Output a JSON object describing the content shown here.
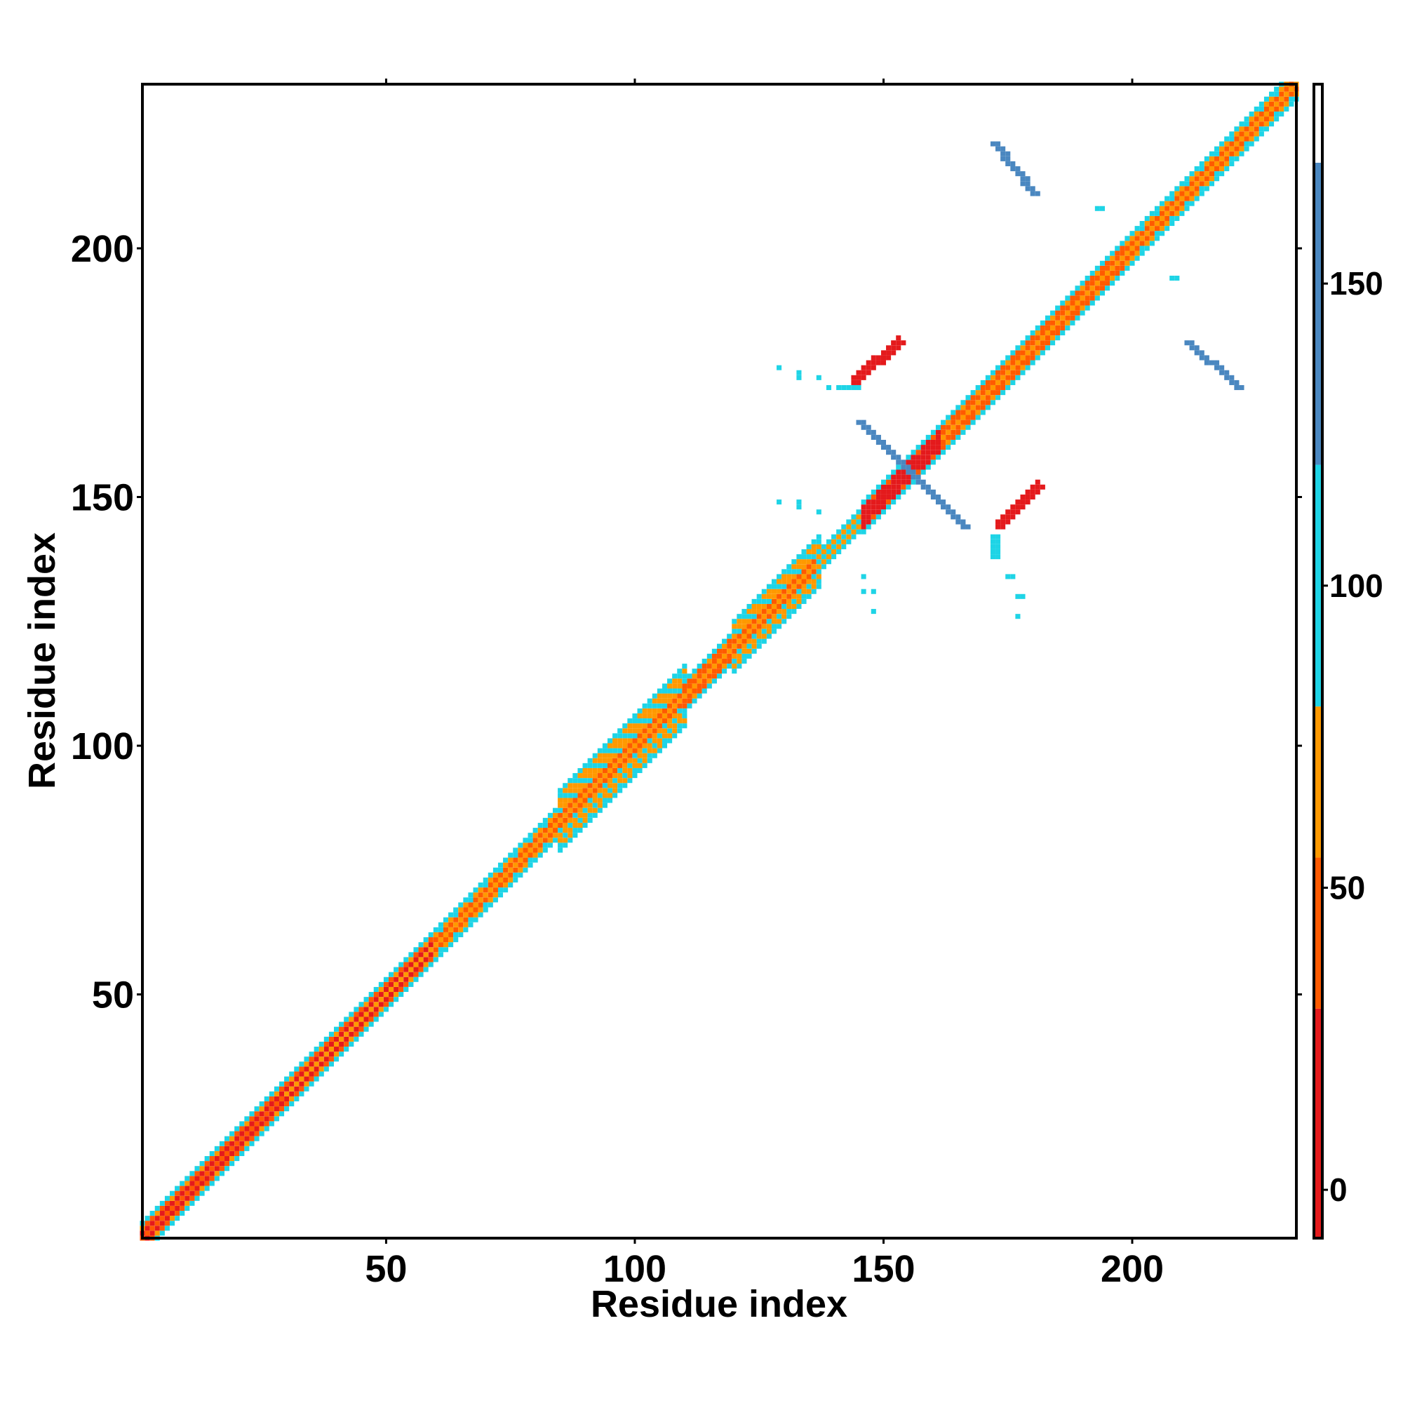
{
  "chart_data": {
    "type": "heatmap",
    "title": "",
    "xlabel": "Residue index",
    "ylabel": "Residue index",
    "xlim": [
      1,
      233
    ],
    "ylim": [
      1,
      233
    ],
    "x_ticks": [
      50,
      100,
      150,
      200
    ],
    "y_ticks": [
      50,
      100,
      150,
      200
    ],
    "colorbar": {
      "range": [
        -8,
        183
      ],
      "ticks": [
        0,
        50,
        100,
        150
      ],
      "bands": [
        {
          "from": -8,
          "to": 30,
          "color": "#e41a1c"
        },
        {
          "from": 30,
          "to": 55,
          "color": "#ff5a00"
        },
        {
          "from": 55,
          "to": 80,
          "color": "#ff9900"
        },
        {
          "from": 80,
          "to": 120,
          "color": "#1ed4e6"
        },
        {
          "from": 120,
          "to": 170,
          "color": "#4a87c0"
        },
        {
          "from": 170,
          "to": 183,
          "color": "#ffffff"
        }
      ]
    },
    "diagonal_segments": [
      {
        "from": 1,
        "to": 30,
        "halfwidth": 3,
        "value": 40
      },
      {
        "from": 30,
        "to": 60,
        "halfwidth": 3,
        "value": 55
      },
      {
        "from": 60,
        "to": 85,
        "halfwidth": 3,
        "value": 65
      },
      {
        "from": 85,
        "to": 110,
        "halfwidth": 6,
        "value": 70
      },
      {
        "from": 110,
        "to": 120,
        "halfwidth": 3,
        "value": 60
      },
      {
        "from": 120,
        "to": 137,
        "halfwidth": 5,
        "value": 70
      },
      {
        "from": 137,
        "to": 146,
        "halfwidth": 2,
        "value": 90
      },
      {
        "from": 146,
        "to": 162,
        "halfwidth": 3,
        "value": 25
      },
      {
        "from": 162,
        "to": 200,
        "halfwidth": 3,
        "value": 60
      },
      {
        "from": 200,
        "to": 233,
        "halfwidth": 3,
        "value": 70
      }
    ],
    "contact_segments": [
      {
        "x1": 145,
        "y1": 165,
        "x2": 166,
        "y2": 144,
        "value": 135
      },
      {
        "x1": 172,
        "y1": 221,
        "x2": 180,
        "y2": 211,
        "value": 140
      },
      {
        "x1": 211,
        "y1": 181,
        "x2": 221,
        "y2": 172,
        "value": 140
      },
      {
        "x1": 144,
        "y1": 173,
        "x2": 153,
        "y2": 181,
        "value": 10
      },
      {
        "x1": 173,
        "y1": 144,
        "x2": 181,
        "y2": 152,
        "value": 10
      },
      {
        "x1": 141,
        "y1": 172,
        "x2": 144,
        "y2": 172,
        "value": 95
      },
      {
        "x1": 172,
        "y1": 142,
        "x2": 172,
        "y2": 138,
        "value": 95
      },
      {
        "x1": 193,
        "y1": 208,
        "x2": 193,
        "y2": 208,
        "value": 95
      },
      {
        "x1": 208,
        "y1": 194,
        "x2": 208,
        "y2": 194,
        "value": 95
      }
    ],
    "scattered_points": [
      [
        129,
        176
      ],
      [
        133,
        175
      ],
      [
        133,
        174
      ],
      [
        137,
        174
      ],
      [
        139,
        172
      ],
      [
        129,
        149
      ],
      [
        133,
        149
      ],
      [
        133,
        148
      ],
      [
        137,
        147
      ],
      [
        146,
        134
      ],
      [
        146,
        131
      ],
      [
        148,
        131
      ],
      [
        148,
        127
      ],
      [
        175,
        134
      ],
      [
        176,
        134
      ],
      [
        177,
        130
      ],
      [
        178,
        130
      ],
      [
        177,
        126
      ]
    ],
    "scattered_value": 95
  }
}
